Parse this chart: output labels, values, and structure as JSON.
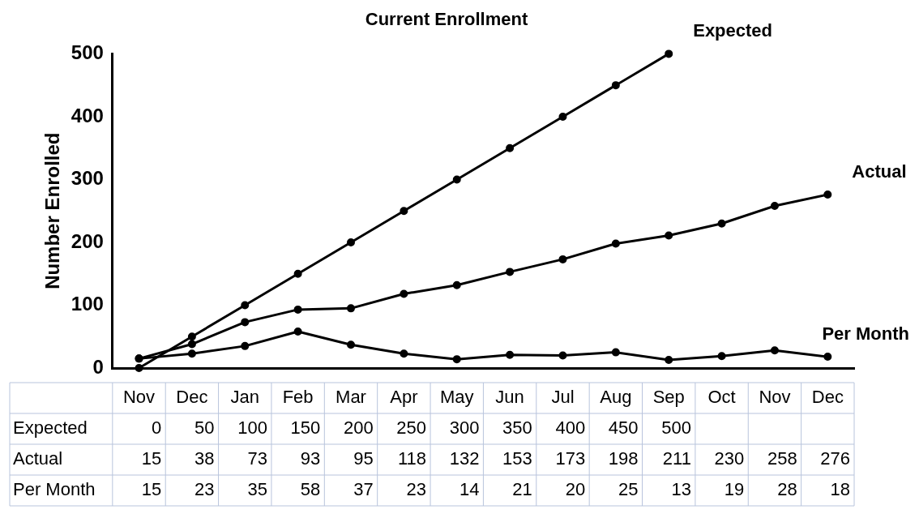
{
  "chart_data": {
    "type": "line",
    "title": "Current Enrollment",
    "ylabel": "Number Enrolled",
    "categories": [
      "Nov",
      "Dec",
      "Jan",
      "Feb",
      "Mar",
      "Apr",
      "May",
      "Jun",
      "Jul",
      "Aug",
      "Sep",
      "Oct",
      "Nov",
      "Dec"
    ],
    "series": [
      {
        "name": "Expected",
        "color": "#000000",
        "values": [
          0,
          50,
          100,
          150,
          200,
          250,
          300,
          350,
          400,
          450,
          500,
          null,
          null,
          null
        ]
      },
      {
        "name": "Actual",
        "color": "#000000",
        "values": [
          15,
          38,
          73,
          93,
          95,
          118,
          132,
          153,
          173,
          198,
          211,
          230,
          258,
          276
        ]
      },
      {
        "name": "Per Month",
        "color": "#000000",
        "values": [
          15,
          23,
          35,
          58,
          37,
          23,
          14,
          21,
          20,
          25,
          13,
          19,
          28,
          18
        ]
      }
    ],
    "ylim": [
      0,
      500
    ],
    "yticks": [
      0,
      100,
      200,
      300,
      400,
      500
    ],
    "grid": false,
    "legend": false,
    "marker": "circle",
    "line_style": "solid",
    "data_labels": true,
    "tick_labels": "y"
  }
}
